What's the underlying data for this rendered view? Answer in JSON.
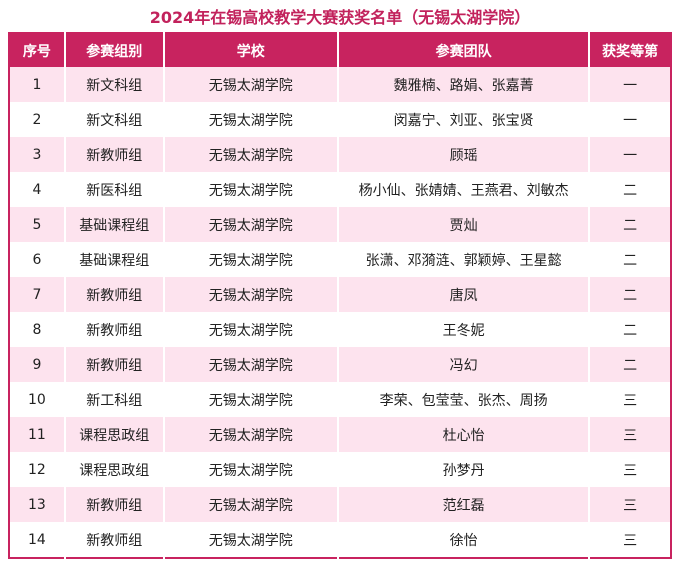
{
  "title": "2024年在锡高校教学大赛获奖名单（无锡太湖学院）",
  "headers": [
    "序号",
    "参赛组别",
    "学校",
    "参赛团队",
    "获奖等第"
  ],
  "rows": [
    [
      "1",
      "新文科组",
      "无锡太湖学院",
      "魏雅楠、路娟、张嘉菁",
      "一"
    ],
    [
      "2",
      "新文科组",
      "无锡太湖学院",
      "闵嘉宁、刘亚、张宝贤",
      "一"
    ],
    [
      "3",
      "新教师组",
      "无锡太湖学院",
      "顾瑶",
      "一"
    ],
    [
      "4",
      "新医科组",
      "无锡太湖学院",
      "杨小仙、张婧婧、王燕君、刘敏杰",
      "二"
    ],
    [
      "5",
      "基础课程组",
      "无锡太湖学院",
      "贾灿",
      "二"
    ],
    [
      "6",
      "基础课程组",
      "无锡太湖学院",
      "张潇、邓漪涟、郭颖婷、王星懿",
      "二"
    ],
    [
      "7",
      "新教师组",
      "无锡太湖学院",
      "唐凤",
      "二"
    ],
    [
      "8",
      "新教师组",
      "无锡太湖学院",
      "王冬妮",
      "二"
    ],
    [
      "9",
      "新教师组",
      "无锡太湖学院",
      "冯幻",
      "二"
    ],
    [
      "10",
      "新工科组",
      "无锡太湖学院",
      "李荣、包莹莹、张杰、周扬",
      "三"
    ],
    [
      "11",
      "课程思政组",
      "无锡太湖学院",
      "杜心怡",
      "三"
    ],
    [
      "12",
      "课程思政组",
      "无锡太湖学院",
      "孙梦丹",
      "三"
    ],
    [
      "13",
      "新教师组",
      "无锡太湖学院",
      "范红磊",
      "三"
    ],
    [
      "14",
      "新教师组",
      "无锡太湖学院",
      "徐怡",
      "三"
    ]
  ],
  "colors": {
    "accent": "#c8235f",
    "row_alt": "#fde3ee"
  }
}
